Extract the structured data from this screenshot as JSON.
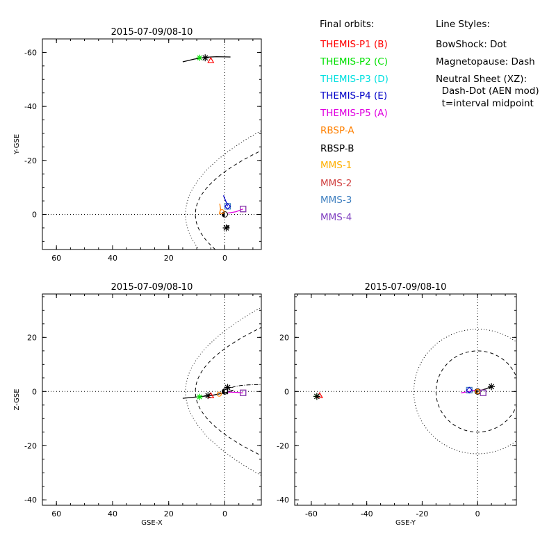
{
  "colors": {
    "themis_p1": "#ff0000",
    "themis_p2": "#00e000",
    "themis_p3": "#00e0e0",
    "themis_p4": "#0000c8",
    "themis_p5": "#e000e0",
    "rbsp_a": "#ff8000",
    "rbsp_b": "#000000",
    "mms_1": "#ffb000",
    "mms_2": "#d04040",
    "mms_3": "#4080c0",
    "mms_4": "#8040c0"
  },
  "legend": {
    "heading": "Final orbits:",
    "items": [
      {
        "label": "THEMIS-P1 (B)",
        "color": "#ff0000"
      },
      {
        "label": "THEMIS-P2 (C)",
        "color": "#00e000"
      },
      {
        "label": "THEMIS-P3 (D)",
        "color": "#00e0e0"
      },
      {
        "label": "THEMIS-P4 (E)",
        "color": "#0000c8"
      },
      {
        "label": "THEMIS-P5 (A)",
        "color": "#e000e0"
      },
      {
        "label": "RBSP-A",
        "color": "#ff8000"
      },
      {
        "label": "RBSP-B",
        "color": "#000000"
      },
      {
        "label": "MMS-1",
        "color": "#ffb000"
      },
      {
        "label": "MMS-2",
        "color": "#d04040"
      },
      {
        "label": "MMS-3",
        "color": "#4080c0"
      },
      {
        "label": "MMS-4",
        "color": "#8040c0"
      }
    ],
    "styles_heading": "Line Styles:",
    "styles": [
      "BowShock: Dot",
      "Magnetopause: Dash",
      "Neutral Sheet (XZ):",
      "  Dash-Dot (AEN mod)",
      "  t=interval midpoint"
    ]
  },
  "chart_data": [
    {
      "type": "scatter",
      "title": "2015-07-09/08-10",
      "xlabel": "",
      "ylabel": "Y-GSE",
      "xlim": [
        65,
        -13
      ],
      "ylim": [
        13,
        -65
      ],
      "xticks": [
        60,
        40,
        20,
        0
      ],
      "yticks": [
        -60,
        -40,
        -20,
        0
      ],
      "boundaries": {
        "bow_shock": true,
        "magnetopause": true,
        "neutral_sheet": false
      },
      "series": [
        {
          "name": "THEMIS-P2 (C)",
          "color": "#00e000",
          "x": [
            9
          ],
          "y": [
            -58
          ]
        },
        {
          "name": "THEMIS-P1 (B)",
          "color": "#ff0000",
          "x": [
            5
          ],
          "y": [
            -57
          ]
        },
        {
          "name": "RBSP-B",
          "color": "#000000",
          "x": [
            7
          ],
          "y": [
            -58
          ]
        },
        {
          "name": "MMS-2",
          "color": "#d04040",
          "x": [
            -6.5
          ],
          "y": [
            -2
          ]
        },
        {
          "name": "MMS-3",
          "color": "#4080c0",
          "x": [
            -1
          ],
          "y": [
            -3
          ]
        },
        {
          "name": "MMS-4",
          "color": "#8040c0",
          "x": [
            -6.5
          ],
          "y": [
            -2
          ]
        },
        {
          "name": "RBSP-A",
          "color": "#ff8000",
          "x": [
            1
          ],
          "y": [
            -1
          ]
        },
        {
          "name": "THEMIS-P4 (E)",
          "color": "#0000c8",
          "x": [
            -1
          ],
          "y": [
            -3
          ]
        }
      ],
      "tracks": [
        {
          "color": "#000000",
          "x": [
            15,
            11,
            7,
            3,
            -2
          ],
          "y": [
            -56.5,
            -57.5,
            -58.2,
            -58.4,
            -58.3
          ]
        },
        {
          "color": "#0000c8",
          "x": [
            0.5,
            -0.5,
            -1
          ],
          "y": [
            -7,
            -4.5,
            -3
          ]
        },
        {
          "color": "#e000e0",
          "x": [
            -1,
            -4,
            -6.5
          ],
          "y": [
            -0.5,
            -1,
            -2
          ]
        },
        {
          "color": "#ff8000",
          "x": [
            2,
            1.5,
            1.8
          ],
          "y": [
            0,
            -2,
            -4
          ]
        },
        {
          "color": "#000000",
          "x": [
            -1.5,
            -1.2,
            -0.8
          ],
          "y": [
            4,
            5,
            4
          ]
        }
      ],
      "stars": [
        {
          "color": "#000000",
          "x": [
            -0.5
          ],
          "y": [
            5
          ]
        }
      ]
    },
    {
      "type": "scatter",
      "title": "2015-07-09/08-10",
      "xlabel": "GSE-X",
      "ylabel": "Z-GSE",
      "xlim": [
        65,
        -13
      ],
      "ylim": [
        -42,
        36
      ],
      "xticks": [
        60,
        40,
        20,
        0
      ],
      "yticks": [
        20,
        0,
        -20,
        -40
      ],
      "boundaries": {
        "bow_shock": true,
        "magnetopause": true,
        "neutral_sheet": true
      },
      "series": [
        {
          "name": "THEMIS-P2 (C)",
          "color": "#00e000",
          "x": [
            9
          ],
          "y": [
            -2
          ]
        },
        {
          "name": "THEMIS-P1 (B)",
          "color": "#ff0000",
          "x": [
            5
          ],
          "y": [
            -1.5
          ]
        },
        {
          "name": "RBSP-B",
          "color": "#000000",
          "x": [
            6
          ],
          "y": [
            -1.5
          ]
        },
        {
          "name": "MMS-2",
          "color": "#d04040",
          "x": [
            -6.5
          ],
          "y": [
            -0.5
          ]
        },
        {
          "name": "MMS-4",
          "color": "#8040c0",
          "x": [
            -6.5
          ],
          "y": [
            -0.5
          ]
        },
        {
          "name": "RBSP-A",
          "color": "#ff8000",
          "x": [
            2
          ],
          "y": [
            -1
          ]
        }
      ],
      "tracks": [
        {
          "color": "#000000",
          "x": [
            15,
            10,
            5,
            0,
            -3
          ],
          "y": [
            -2.5,
            -2,
            -1.5,
            -0.5,
            0.5
          ]
        },
        {
          "color": "#e000e0",
          "x": [
            -1,
            -4,
            -6.5
          ],
          "y": [
            -0.2,
            -0.3,
            -0.5
          ]
        },
        {
          "color": "#000000",
          "x": [
            -1,
            -1,
            -1
          ],
          "y": [
            -1,
            0.5,
            2
          ]
        }
      ],
      "stars": [
        {
          "color": "#000000",
          "x": [
            -1
          ],
          "y": [
            1.5
          ]
        }
      ]
    },
    {
      "type": "scatter",
      "title": "2015-07-09/08-10",
      "xlabel": "GSE-Y",
      "ylabel": "",
      "xlim": [
        -66,
        14
      ],
      "ylim": [
        -42,
        36
      ],
      "xticks": [
        -60,
        -40,
        -20,
        0
      ],
      "yticks": [
        20,
        0,
        -20,
        -40
      ],
      "boundaries": {
        "bow_shock": true,
        "magnetopause": true,
        "neutral_sheet": false
      },
      "series": [
        {
          "name": "THEMIS-P2 (C)",
          "color": "#00e000",
          "x": [
            -58
          ],
          "y": [
            -1.8
          ]
        },
        {
          "name": "THEMIS-P1 (B)",
          "color": "#ff0000",
          "x": [
            -57
          ],
          "y": [
            -1.5
          ]
        },
        {
          "name": "RBSP-B",
          "color": "#000000",
          "x": [
            -58
          ],
          "y": [
            -1.8
          ]
        },
        {
          "name": "MMS-3",
          "color": "#4080c0",
          "x": [
            -3
          ],
          "y": [
            0.5
          ]
        },
        {
          "name": "MMS-2",
          "color": "#d04040",
          "x": [
            2
          ],
          "y": [
            -0.5
          ]
        },
        {
          "name": "MMS-4",
          "color": "#8040c0",
          "x": [
            2
          ],
          "y": [
            -0.5
          ]
        },
        {
          "name": "THEMIS-P4 (E)",
          "color": "#0000c8",
          "x": [
            -3
          ],
          "y": [
            0.5
          ]
        },
        {
          "name": "RBSP-A",
          "color": "#ff8000",
          "x": [
            0
          ],
          "y": [
            0
          ]
        }
      ],
      "tracks": [
        {
          "color": "#e000e0",
          "x": [
            -6,
            -3,
            -1
          ],
          "y": [
            -0.5,
            0,
            0.5
          ]
        },
        {
          "color": "#000000",
          "x": [
            0,
            3,
            5
          ],
          "y": [
            0,
            1,
            1.8
          ]
        }
      ],
      "stars": [
        {
          "color": "#000000",
          "x": [
            5
          ],
          "y": [
            1.8
          ]
        }
      ]
    }
  ]
}
